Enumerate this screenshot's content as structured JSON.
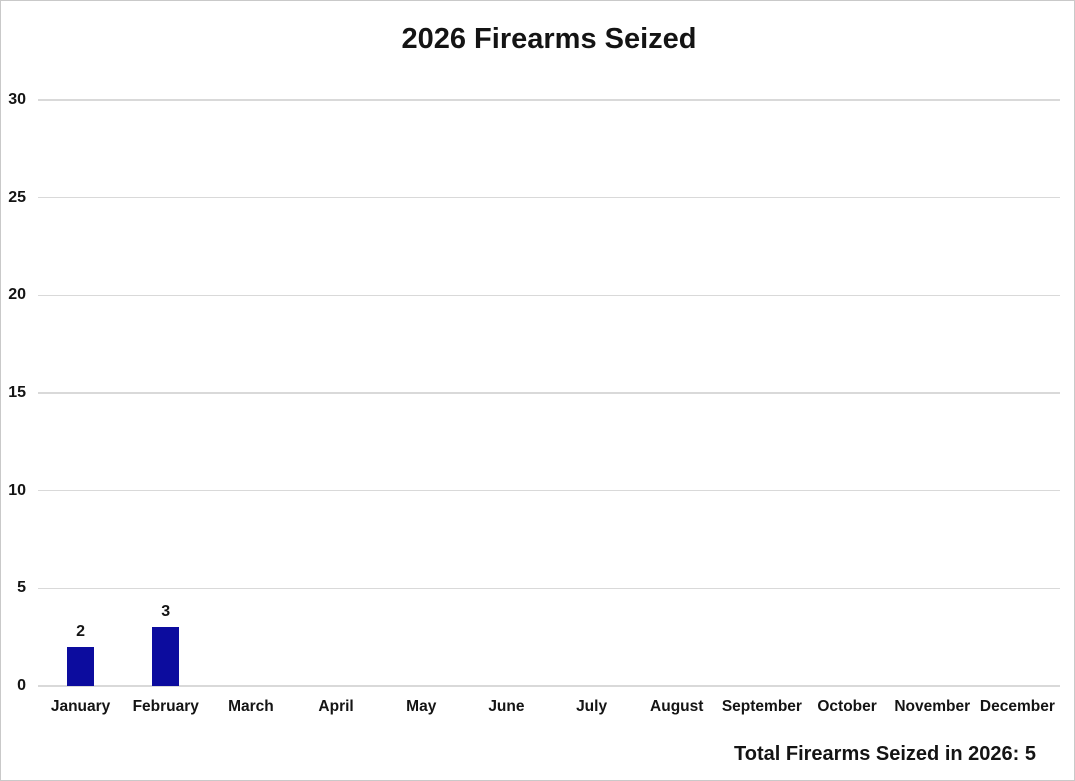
{
  "chart_data": {
    "type": "bar",
    "title": "2026 Firearms Seized",
    "categories": [
      "January",
      "February",
      "March",
      "April",
      "May",
      "June",
      "July",
      "August",
      "September",
      "October",
      "November",
      "December"
    ],
    "values": [
      2,
      3,
      0,
      0,
      0,
      0,
      0,
      0,
      0,
      0,
      0,
      0
    ],
    "data_labels": [
      "2",
      "3",
      "",
      "",
      "",
      "",
      "",
      "",
      "",
      "",
      "",
      ""
    ],
    "xlabel": "",
    "ylabel": "",
    "ylim": [
      0,
      30
    ],
    "ytick_step": 5,
    "ytick_labels": [
      "0",
      "5",
      "10",
      "15",
      "20",
      "25",
      "30"
    ],
    "grid": true,
    "legend_position": "none",
    "bar_color": "#0c0c9e",
    "gridline_color": "#d9d9d9",
    "text_color": "#141414",
    "total_label": "Total Firearms Seized in 2026: 5"
  }
}
